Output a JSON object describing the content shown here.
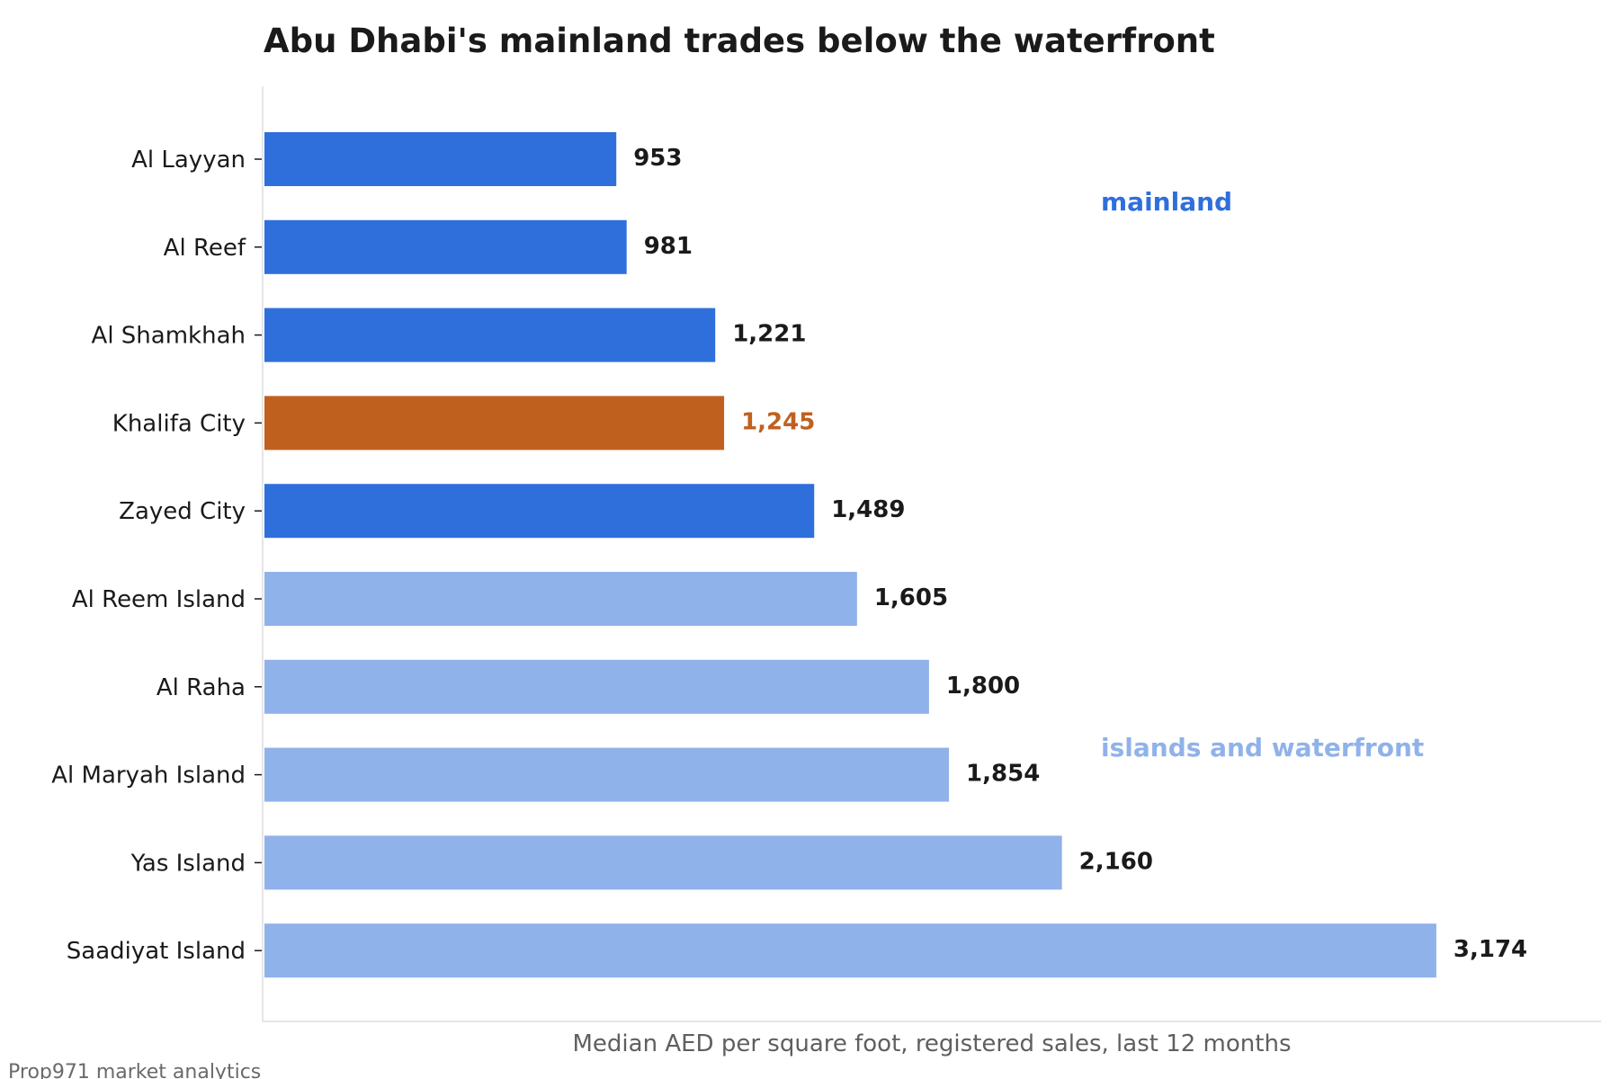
{
  "chart_data": {
    "type": "bar",
    "orientation": "horizontal",
    "title": "Abu Dhabi's mainland trades below the waterfront",
    "xlabel": "Median AED per square foot, registered sales, last 12 months",
    "ylabel": "",
    "xlim": [
      0,
      3620
    ],
    "grid": false,
    "categories": [
      "Al Layyan",
      "Al Reef",
      "Al Shamkhah",
      "Khalifa City",
      "Zayed City",
      "Al Reem Island",
      "Al Raha",
      "Al Maryah Island",
      "Yas Island",
      "Saadiyat Island"
    ],
    "values": [
      953,
      981,
      1221,
      1245,
      1489,
      1605,
      1800,
      1854,
      2160,
      3174
    ],
    "value_labels": [
      "953",
      "981",
      "1,221",
      "1,245",
      "1,489",
      "1,605",
      "1,800",
      "1,854",
      "2,160",
      "3,174"
    ],
    "groups": [
      "mainland",
      "mainland",
      "mainland",
      "highlight",
      "mainland",
      "islands",
      "islands",
      "islands",
      "islands",
      "islands"
    ],
    "annotations": [
      {
        "text": "mainland",
        "group": "mainland"
      },
      {
        "text": "islands and waterfront",
        "group": "islands"
      }
    ],
    "colors": {
      "mainland": "#2f6fdb",
      "islands": "#90b2ea",
      "highlight": "#c0601f",
      "label_default": "#1a1a1a"
    }
  },
  "source": "Prop971 market analytics"
}
